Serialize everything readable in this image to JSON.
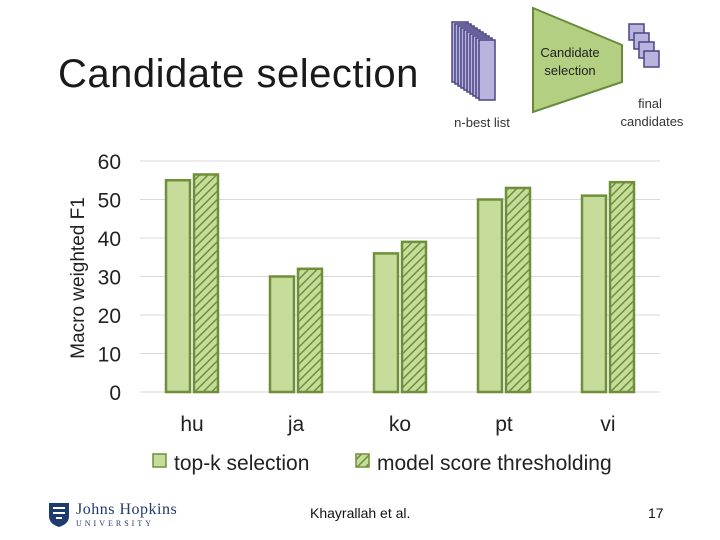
{
  "slide": {
    "title": "Candidate selection",
    "author": "Khayrallah et al.",
    "page_number": "17",
    "logo": {
      "name": "Johns Hopkins",
      "subtitle": "UNIVERSITY"
    }
  },
  "diagram": {
    "input_label": "n-best list",
    "process_label_line1": "Candidate",
    "process_label_line2": "selection",
    "output_label_line1": "final",
    "output_label_line2": "candidates"
  },
  "colors": {
    "bar_fill": "#c5dc9a",
    "bar_stroke": "#6f8f3a",
    "hatch": "#6f8f3a",
    "doc_fill": "#b9b4dd",
    "doc_stroke": "#4b4485",
    "funnel_fill": "#b3cf81",
    "funnel_stroke": "#6a8a3b"
  },
  "chart_data": {
    "type": "bar",
    "categories": [
      "hu",
      "ja",
      "ko",
      "pt",
      "vi"
    ],
    "series": [
      {
        "name": "top-k selection",
        "values": [
          55,
          30,
          36,
          50,
          51
        ]
      },
      {
        "name": "model score thresholding",
        "values": [
          56.5,
          32,
          39,
          53,
          54.5
        ]
      }
    ],
    "ylabel": "Macro weighted F1",
    "ylim": [
      0,
      60
    ],
    "yticks": [
      "0",
      "10",
      "20",
      "30",
      "40",
      "50",
      "60"
    ],
    "grid": true,
    "legend_position": "bottom"
  }
}
